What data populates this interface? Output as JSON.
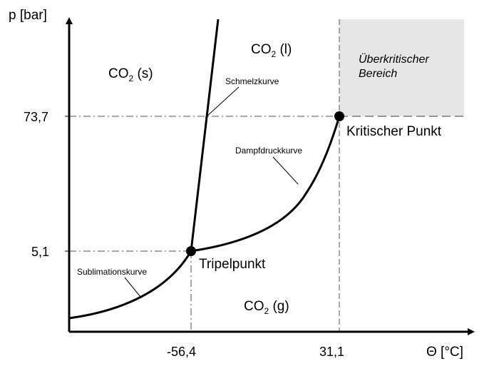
{
  "axes": {
    "y_label": "p [bar]",
    "x_label": "Θ [°C]"
  },
  "ticks": {
    "y": [
      "73,7",
      "5,1"
    ],
    "x": [
      "-56,4",
      "31,1"
    ]
  },
  "regions": {
    "solid": {
      "main": "CO",
      "sub": "2",
      "rest": " (s)"
    },
    "liquid": {
      "main": "CO",
      "sub": "2",
      "rest": " (l)"
    },
    "gas": {
      "main": "CO",
      "sub": "2",
      "rest": " (g)"
    },
    "supercritical_line1": "Überkritischer",
    "supercritical_line2": "Bereich"
  },
  "curves": {
    "melting": "Schmelzkurve",
    "vapor_pressure": "Dampfdruckkurve",
    "sublimation": "Sublimationskurve"
  },
  "points": {
    "triple": "Tripelpunkt",
    "critical": "Kritischer Punkt"
  },
  "colors": {
    "curve": "#000000",
    "supercritical_fill": "#e6e6e6",
    "guide": "#555555"
  }
}
